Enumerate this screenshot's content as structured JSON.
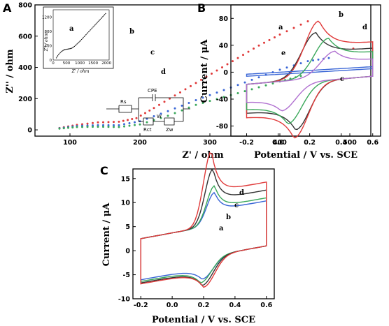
{
  "chart_data": [
    {
      "panel": "A",
      "type": "scatter",
      "xlabel": "Z' / ohm",
      "ylabel": "Z'' / ohm",
      "xlim": [
        50,
        530
      ],
      "ylim": [
        -40,
        800
      ],
      "xticks": [
        "100",
        "200",
        "300",
        "400",
        "500"
      ],
      "yticks": [
        "0",
        "200",
        "400",
        "600",
        "800"
      ],
      "series": [
        {
          "name": "a",
          "color": "#222222",
          "points": [
            [
              85,
              12
            ],
            [
              115,
              38
            ],
            [
              160,
              45
            ],
            [
              200,
              70
            ],
            [
              240,
              140
            ],
            [
              280,
              230
            ],
            [
              320,
              330
            ],
            [
              360,
              440
            ],
            [
              400,
              560
            ],
            [
              440,
              670
            ],
            [
              480,
              780
            ]
          ]
        },
        {
          "name": "b",
          "color": "#e03a3a",
          "points": [
            [
              85,
              12
            ],
            [
              110,
              32
            ],
            [
              140,
              48
            ],
            [
              170,
              52
            ],
            [
              195,
              75
            ],
            [
              220,
              140
            ],
            [
              250,
              220
            ],
            [
              280,
              300
            ],
            [
              310,
              380
            ],
            [
              340,
              460
            ],
            [
              370,
              540
            ],
            [
              400,
              610
            ],
            [
              440,
              695
            ]
          ]
        },
        {
          "name": "c",
          "color": "#3a66d6",
          "points": [
            [
              85,
              10
            ],
            [
              110,
              25
            ],
            [
              140,
              30
            ],
            [
              170,
              30
            ],
            [
              200,
              55
            ],
            [
              240,
              120
            ],
            [
              280,
              190
            ],
            [
              320,
              255
            ],
            [
              360,
              320
            ],
            [
              400,
              385
            ],
            [
              440,
              440
            ],
            [
              470,
              460
            ]
          ]
        },
        {
          "name": "d",
          "color": "#3aa85a",
          "points": [
            [
              85,
              8
            ],
            [
              110,
              18
            ],
            [
              140,
              20
            ],
            [
              170,
              18
            ],
            [
              200,
              35
            ],
            [
              240,
              90
            ],
            [
              280,
              160
            ],
            [
              320,
              210
            ],
            [
              360,
              260
            ],
            [
              400,
              310
            ],
            [
              430,
              345
            ]
          ]
        }
      ],
      "series_extra": [
        {
          "name": "b_tail",
          "color": "#e03a3a",
          "points": [
            [
              505,
              520
            ]
          ]
        }
      ],
      "inset": {
        "label": "a",
        "xlabel": "Z' / ohm",
        "ylabel": "Z'' / ohm",
        "xticks": [
          "0",
          "500",
          "1000",
          "1500",
          "2000"
        ],
        "yticks": [
          "0",
          "400",
          "800",
          "1200"
        ],
        "points": [
          [
            120,
            60
          ],
          [
            200,
            150
          ],
          [
            300,
            230
          ],
          [
            400,
            280
          ],
          [
            500,
            300
          ],
          [
            600,
            310
          ],
          [
            700,
            330
          ],
          [
            800,
            380
          ],
          [
            900,
            450
          ],
          [
            1000,
            520
          ],
          [
            1100,
            600
          ],
          [
            1200,
            680
          ],
          [
            1300,
            760
          ],
          [
            1400,
            840
          ],
          [
            1500,
            920
          ],
          [
            1600,
            1000
          ],
          [
            1700,
            1080
          ],
          [
            1800,
            1160
          ],
          [
            1900,
            1240
          ],
          [
            2000,
            1320
          ]
        ]
      },
      "circuit": {
        "labels": [
          "CPE",
          "Rs",
          "W",
          "Rct",
          "Zw"
        ]
      }
    },
    {
      "panel": "B",
      "type": "line",
      "xlabel": "Potential / V vs. SCE",
      "ylabel": "Current / μA",
      "xlim": [
        -0.3,
        0.65
      ],
      "ylim": [
        -95,
        100
      ],
      "xticks": [
        "-0.2",
        "0.0",
        "0.2",
        "0.4",
        "0.6"
      ],
      "yticks": [
        "-80",
        "-40",
        "0",
        "40",
        "80"
      ],
      "series": [
        {
          "name": "a",
          "color": "#333333",
          "peak_anodic": [
            0.24,
            68
          ],
          "peak_cathodic": [
            0.11,
            -70
          ]
        },
        {
          "name": "b",
          "color": "#e03a3a",
          "peak_anodic": [
            0.26,
            85
          ],
          "peak_cathodic": [
            0.1,
            -82
          ]
        },
        {
          "name": "c",
          "color": "#3a66d6",
          "flat": true
        },
        {
          "name": "d",
          "color": "#3aa85a",
          "peak_anodic": [
            0.32,
            58
          ],
          "peak_cathodic": [
            0.06,
            -60
          ]
        },
        {
          "name": "e",
          "color": "#b070d0",
          "peak_anodic": [
            0.36,
            38
          ],
          "peak_cathodic": [
            0.02,
            -40
          ]
        }
      ]
    },
    {
      "panel": "C",
      "type": "line",
      "xlabel": "Potential / V vs. SCE",
      "ylabel": "Current / μA",
      "xlim": [
        -0.25,
        0.65
      ],
      "ylim": [
        -10,
        17
      ],
      "xticks": [
        "-0.2",
        "0.0",
        "0.2",
        "0.4",
        "0.6"
      ],
      "yticks": [
        "-10",
        "-5",
        "0",
        "5",
        "10",
        "15"
      ],
      "series": [
        {
          "name": "a",
          "color": "#3a66d6",
          "peak_anodic": [
            0.27,
            6.8
          ],
          "peak_cathodic": [
            0.19,
            -4.5
          ]
        },
        {
          "name": "b",
          "color": "#3aa85a",
          "peak_anodic": [
            0.27,
            8.2
          ],
          "peak_cathodic": [
            0.18,
            -5.2
          ]
        },
        {
          "name": "c",
          "color": "#333333",
          "peak_anodic": [
            0.26,
            11.8
          ],
          "peak_cathodic": [
            0.19,
            -5.8
          ]
        },
        {
          "name": "d",
          "color": "#e03a3a",
          "peak_anodic": [
            0.25,
            15.5
          ],
          "peak_cathodic": [
            0.2,
            -6.2
          ]
        }
      ]
    }
  ]
}
